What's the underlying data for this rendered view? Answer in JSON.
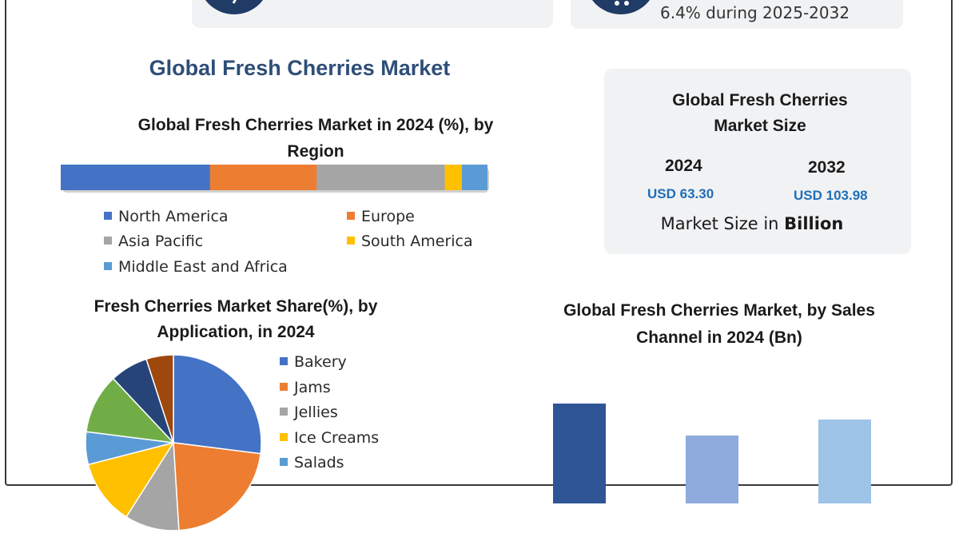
{
  "header": {
    "cagr_text": "6.4% during 2025-2032"
  },
  "main_title": "Global Fresh Cherries Market",
  "market_size": {
    "title_line1": "Global Fresh Cherries",
    "title_line2": "Market Size",
    "years": [
      {
        "year": "2024",
        "value": "USD 63.30"
      },
      {
        "year": "2032",
        "value": "USD 103.98"
      }
    ],
    "unit_prefix": "Market Size in ",
    "unit_bold": "Billion"
  },
  "chart_data": [
    {
      "type": "bar",
      "orientation": "horizontal-stacked",
      "title_line1": "Global Fresh Cherries Market in 2024 (%), by",
      "title_line2": "Region",
      "series": [
        {
          "name": "North America",
          "value": 35,
          "color": "#4472c4"
        },
        {
          "name": "Europe",
          "value": 25,
          "color": "#ed7d31"
        },
        {
          "name": "Asia Pacific",
          "value": 30,
          "color": "#a5a5a5"
        },
        {
          "name": "South America",
          "value": 4,
          "color": "#ffc000"
        },
        {
          "name": "Middle East and Africa",
          "value": 6,
          "color": "#5b9bd5"
        }
      ]
    },
    {
      "type": "pie",
      "title_line1": "Fresh Cherries Market Share(%), by",
      "title_line2": "Application, in 2024",
      "slices": [
        {
          "name": "Bakery",
          "value": 27,
          "color": "#4472c4"
        },
        {
          "name": "Jams",
          "value": 22,
          "color": "#ed7d31"
        },
        {
          "name": "Jellies",
          "value": 10,
          "color": "#a5a5a5"
        },
        {
          "name": "Ice Creams",
          "value": 12,
          "color": "#ffc000"
        },
        {
          "name": "Salads",
          "value": 6,
          "color": "#5b9bd5"
        },
        {
          "name": "",
          "value": 11,
          "color": "#70ad47"
        },
        {
          "name": "",
          "value": 7,
          "color": "#264478"
        },
        {
          "name": "",
          "value": 5,
          "color": "#9e480e"
        }
      ],
      "legend_visible": [
        "Bakery",
        "Jams",
        "Jellies",
        "Ice Creams",
        "Salads"
      ]
    },
    {
      "type": "bar",
      "title_line1": "Global Fresh Cherries Market, by Sales",
      "title_line2": "Channel in 2024 (Bn)",
      "categories": [
        "",
        "",
        ""
      ],
      "values": [
        25,
        17,
        21
      ],
      "colors": [
        "#2f5597",
        "#8faadc",
        "#9dc3e6"
      ],
      "ylim": [
        0,
        30
      ]
    }
  ]
}
